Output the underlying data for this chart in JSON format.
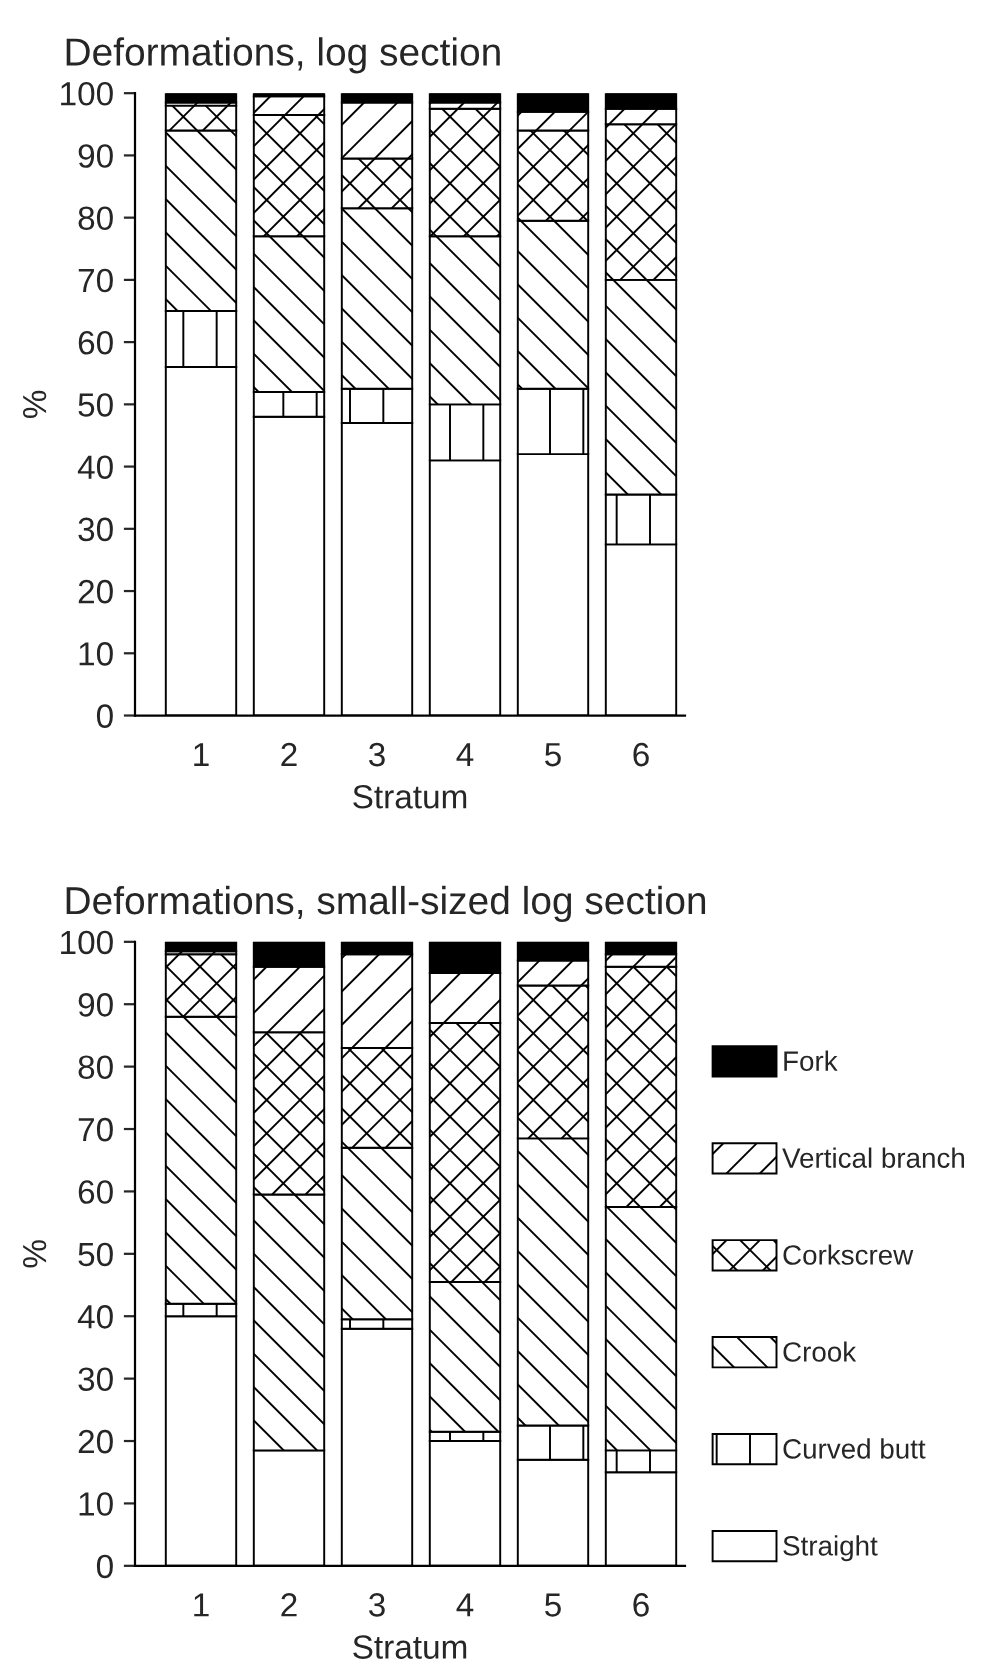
{
  "chart_data": [
    {
      "type": "bar",
      "stacked": true,
      "title": "Deformations, log section",
      "xlabel": "Stratum",
      "ylabel": "%",
      "categories": [
        "1",
        "2",
        "3",
        "4",
        "5",
        "6"
      ],
      "ylim": [
        0,
        100
      ],
      "yticks": [
        0,
        10,
        20,
        30,
        40,
        50,
        60,
        70,
        80,
        90,
        100
      ],
      "grid": false,
      "legend": false,
      "series": [
        {
          "color": "#ffffff",
          "values": [
            56,
            48,
            47,
            41,
            42,
            27.5
          ]
        },
        {
          "color": "#000000",
          "values": [
            9,
            4,
            5.5,
            9,
            10.5,
            8
          ]
        },
        {
          "color": "#000000",
          "values": [
            29,
            25,
            29,
            27,
            27,
            34.5
          ]
        },
        {
          "color": "#000000",
          "values": [
            4,
            19.5,
            8,
            20.5,
            14.5,
            25
          ]
        },
        {
          "color": "#000000",
          "values": [
            0.5,
            3,
            9,
            1,
            3,
            2.5
          ]
        },
        {
          "color": "#000000",
          "values": [
            1.5,
            0.5,
            1.5,
            1.5,
            3,
            2.5
          ]
        }
      ]
    },
    {
      "type": "bar",
      "stacked": true,
      "title": "Deformations, small-sized log section",
      "xlabel": "Stratum",
      "ylabel": "%",
      "categories": [
        "1",
        "2",
        "3",
        "4",
        "5",
        "6"
      ],
      "ylim": [
        0,
        100
      ],
      "yticks": [
        0,
        10,
        20,
        30,
        40,
        50,
        60,
        70,
        80,
        90,
        100
      ],
      "grid": false,
      "legend": "right",
      "series": [
        {
          "name": "Straight",
          "color": "#ffffff",
          "values": [
            40,
            18.5,
            38,
            20,
            17,
            15
          ]
        },
        {
          "name": "Curved butt",
          "color": "#000000",
          "values": [
            2,
            0,
            1.5,
            1.5,
            5.5,
            3.5
          ]
        },
        {
          "name": "Crook",
          "color": "#000000",
          "values": [
            46,
            41,
            27.5,
            24,
            46,
            39
          ]
        },
        {
          "name": "Corkscrew",
          "color": "#000000",
          "values": [
            10,
            26,
            16,
            41.5,
            24.5,
            38.5
          ]
        },
        {
          "name": "Vertical branch",
          "color": "#000000",
          "values": [
            0.5,
            10.5,
            15,
            8,
            4,
            2
          ]
        },
        {
          "name": "Fork",
          "color": "#000000",
          "values": [
            1.5,
            4,
            2,
            5,
            3,
            2
          ]
        }
      ]
    }
  ]
}
